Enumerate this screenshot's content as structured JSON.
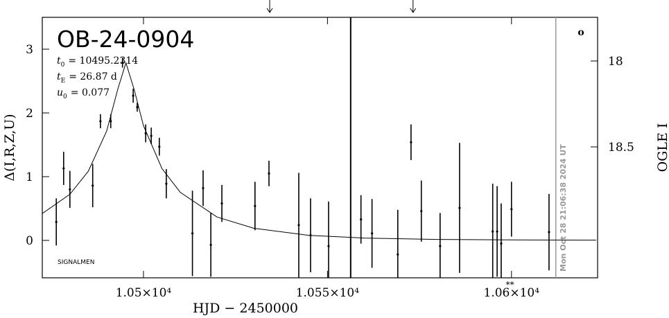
{
  "chart_data": {
    "type": "scatter",
    "title": "OB-24-0904",
    "x_label": "HJD − 2450000",
    "y_label": "Δ(I,R,Z,U)",
    "y2_label": "OGLE I",
    "xlim": [
      10472.5,
      10623.4
    ],
    "ylim": [
      -0.587,
      3.5
    ],
    "y2lim": [
      17.746,
      19.262
    ],
    "y2_inverted": true,
    "xticks": [
      {
        "value": 10500,
        "label": "1.05×10⁴"
      },
      {
        "value": 10550,
        "label": "1.055×10⁴"
      },
      {
        "value": 10600,
        "label": "1.06×10⁴"
      }
    ],
    "yticks": [
      0,
      1,
      2,
      3
    ],
    "y2ticks": [
      18,
      18.5
    ],
    "annotations": [
      {
        "var": "t",
        "sub": "0",
        "text": "= 10495.2314"
      },
      {
        "var": "t",
        "sub": "E",
        "text": "= 26.87 d"
      },
      {
        "var": "u",
        "sub": "0",
        "text": "= 0.077"
      }
    ],
    "credit": "SIGNALMEN",
    "timestamp": "Mon Oct 28 21:06:38 2024 UT",
    "corner_mark": "o",
    "star_mark": {
      "text": "**",
      "x": 10599.6
    },
    "vlines": [
      10556.3
    ],
    "gray_vlines": [
      10612.05
    ],
    "arrows": [
      10534.3,
      10573.25
    ],
    "points": {
      "color": "#000000",
      "x": [
        10476.3,
        10478.3,
        10480.0,
        10486.2,
        10488.3,
        10491.1,
        10494.3,
        10497.2,
        10498.3,
        10500.6,
        10502.1,
        10504.3,
        10506.2,
        10513.3,
        10516.2,
        10518.3,
        10521.3,
        10530.3,
        10534.1,
        10542.2,
        10545.4,
        10550.3,
        10559.1,
        10562.1,
        10569.1,
        10572.7,
        10575.5,
        10580.6,
        10585.9,
        10594.9,
        10596.1,
        10597.2,
        10600.0,
        10610.2
      ],
      "values": [
        0.29,
        1.13,
        0.8,
        0.86,
        1.87,
        1.87,
        2.79,
        2.27,
        2.09,
        1.68,
        1.64,
        1.47,
        0.89,
        0.11,
        0.82,
        -0.07,
        0.58,
        0.54,
        1.05,
        0.24,
        0.08,
        -0.09,
        0.33,
        0.11,
        -0.22,
        1.54,
        0.46,
        -0.09,
        0.51,
        0.14,
        0.14,
        -0.05,
        0.49,
        0.13
      ],
      "errors": [
        0.37,
        0.26,
        0.29,
        0.34,
        0.11,
        0.11,
        0.08,
        0.11,
        0.07,
        0.14,
        0.13,
        0.14,
        0.23,
        0.67,
        0.28,
        0.5,
        0.29,
        0.38,
        0.2,
        0.82,
        0.58,
        0.7,
        0.38,
        0.54,
        0.7,
        0.28,
        0.48,
        0.52,
        1.02,
        0.75,
        0.71,
        0.63,
        0.43,
        0.6
      ]
    },
    "model": {
      "color": "#000000",
      "x": [
        10472.5,
        10480,
        10485,
        10490,
        10493,
        10495.23,
        10497.5,
        10500,
        10505,
        10510,
        10520,
        10530,
        10545,
        10560,
        10580,
        10600,
        10623
      ],
      "values": [
        0.421,
        0.724,
        1.085,
        1.716,
        2.37,
        2.786,
        2.36,
        1.799,
        1.129,
        0.754,
        0.366,
        0.19,
        0.079,
        0.037,
        0.015,
        0.0075,
        0.004
      ]
    }
  }
}
